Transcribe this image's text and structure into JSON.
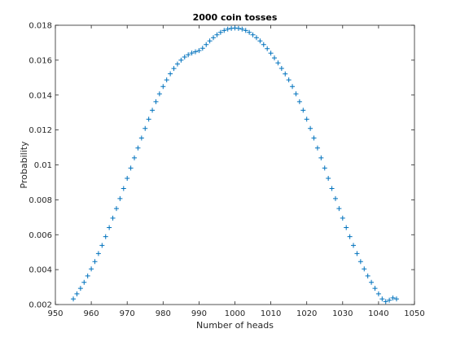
{
  "chart_data": {
    "type": "scatter",
    "title": "2000 coin tosses",
    "xlabel": "Number of heads",
    "ylabel": "Probability",
    "xlim": [
      950,
      1050
    ],
    "ylim": [
      0.002,
      0.018
    ],
    "xticks": [
      950,
      960,
      970,
      980,
      990,
      1000,
      1010,
      1020,
      1030,
      1040,
      1050
    ],
    "xtick_labels": [
      "950",
      "960",
      "970",
      "980",
      "990",
      "1000",
      "1010",
      "1020",
      "1030",
      "1040",
      "1050"
    ],
    "yticks": [
      0.002,
      0.004,
      0.006,
      0.008,
      0.01,
      0.012,
      0.014,
      0.016,
      0.018
    ],
    "ytick_labels": [
      "0.002",
      "0.004",
      "0.006",
      "0.008",
      "0.01",
      "0.012",
      "0.014",
      "0.016",
      "0.018"
    ],
    "grid": false,
    "marker": "+",
    "color": "#0072BD",
    "series": [
      {
        "x": [
          955,
          956,
          957,
          958,
          959,
          960,
          961,
          962,
          963,
          964,
          965,
          966,
          967,
          968,
          969,
          970,
          971,
          972,
          973,
          974,
          975,
          976,
          977,
          978,
          979,
          980,
          981,
          982,
          983,
          984,
          985,
          986,
          987,
          988,
          989,
          990,
          991,
          992,
          993,
          994,
          995,
          996,
          997,
          998,
          999,
          1000,
          1001,
          1002,
          1003,
          1004,
          1005,
          1006,
          1007,
          1008,
          1009,
          1010,
          1011,
          1012,
          1013,
          1014,
          1015,
          1016,
          1017,
          1018,
          1019,
          1020,
          1021,
          1022,
          1023,
          1024,
          1025,
          1026,
          1027,
          1028,
          1029,
          1030,
          1031,
          1032,
          1033,
          1034,
          1035,
          1036,
          1037,
          1038,
          1039,
          1040,
          1041,
          1042,
          1043,
          1044,
          1045
        ],
        "y": [
          0.00232,
          0.00261,
          0.00293,
          0.00327,
          0.00364,
          0.00404,
          0.00446,
          0.00492,
          0.00539,
          0.00589,
          0.00641,
          0.00695,
          0.0075,
          0.00807,
          0.00865,
          0.00923,
          0.00982,
          0.0104,
          0.01097,
          0.01154,
          0.01209,
          0.01262,
          0.01313,
          0.01362,
          0.01407,
          0.01449,
          0.01487,
          0.01522,
          0.01552,
          0.01578,
          0.016,
          0.01618,
          0.01631,
          0.01641,
          0.01648,
          0.01655,
          0.01668,
          0.01689,
          0.0171,
          0.01729,
          0.01745,
          0.01759,
          0.0177,
          0.01778,
          0.01782,
          0.01784,
          0.01782,
          0.01778,
          0.0177,
          0.01759,
          0.01745,
          0.01729,
          0.0171,
          0.01689,
          0.01666,
          0.0164,
          0.01613,
          0.01584,
          0.01553,
          0.01521,
          0.01487,
          0.01449,
          0.01407,
          0.01362,
          0.01313,
          0.01262,
          0.01209,
          0.01154,
          0.01097,
          0.0104,
          0.00982,
          0.00923,
          0.00865,
          0.00807,
          0.0075,
          0.00695,
          0.00641,
          0.00589,
          0.00539,
          0.00492,
          0.00446,
          0.00404,
          0.00364,
          0.00327,
          0.00293,
          0.00261,
          0.00232,
          0.00217,
          0.00225,
          0.00238,
          0.00232
        ]
      }
    ]
  }
}
